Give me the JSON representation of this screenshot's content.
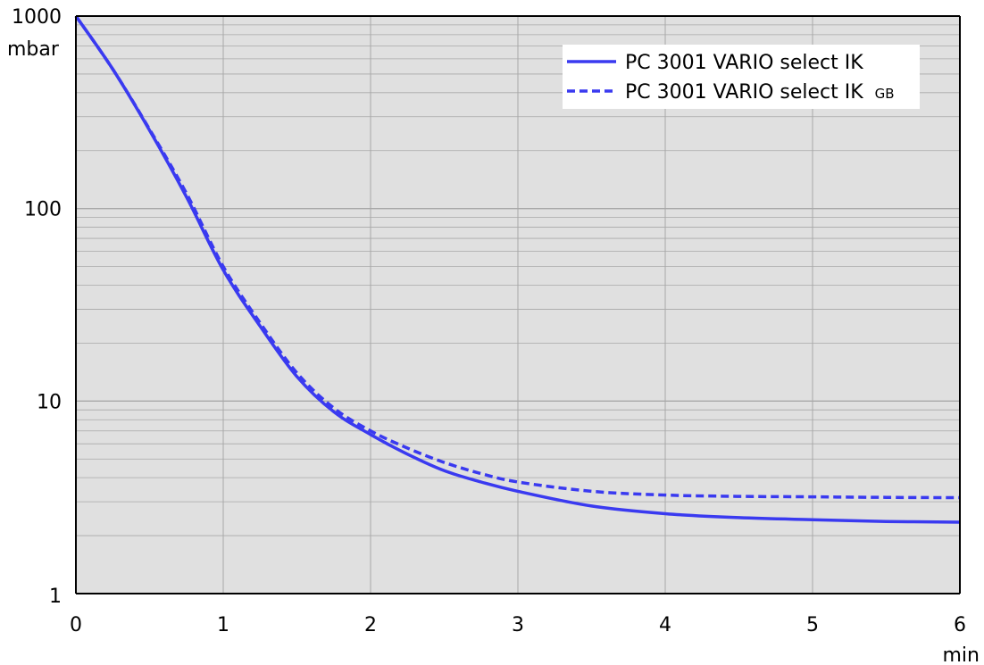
{
  "chart_data": {
    "type": "line",
    "x_axis": {
      "range": [
        0,
        6
      ],
      "ticks": [
        "0",
        "1",
        "2",
        "3",
        "4",
        "5",
        "6"
      ],
      "unit": "min"
    },
    "y_axis": {
      "scale": "log",
      "range": [
        1,
        1000
      ],
      "ticks": [
        "1",
        "10",
        "100",
        "1000"
      ],
      "unit": "mbar"
    },
    "grid": true,
    "legend_position": "top-right",
    "colors": {
      "background": "#e0e0e0",
      "grid": "#a8a8a8",
      "series": "#3a3af0"
    },
    "series": [
      {
        "name": "PC 3001 VARIO select IK",
        "name_suffix": "",
        "style": "solid",
        "x": [
          0,
          0.25,
          0.5,
          0.75,
          1.0,
          1.25,
          1.5,
          1.75,
          2.0,
          2.25,
          2.5,
          2.75,
          3.0,
          3.5,
          4.0,
          4.5,
          5.0,
          5.5,
          6.0
        ],
        "y": [
          1000,
          530,
          255,
          115,
          48,
          24.5,
          13.4,
          8.8,
          6.7,
          5.3,
          4.35,
          3.8,
          3.4,
          2.85,
          2.6,
          2.48,
          2.42,
          2.37,
          2.35
        ]
      },
      {
        "name": "PC 3001 VARIO select IK",
        "name_suffix": "GB",
        "style": "dashed",
        "x": [
          0,
          0.25,
          0.5,
          0.75,
          1.0,
          1.25,
          1.5,
          1.75,
          2.0,
          2.25,
          2.5,
          2.75,
          3.0,
          3.5,
          4.0,
          4.5,
          5.0,
          5.5,
          6.0
        ],
        "y": [
          1000,
          530,
          258,
          120,
          50,
          25.5,
          14.0,
          9.2,
          7.0,
          5.7,
          4.8,
          4.2,
          3.8,
          3.4,
          3.25,
          3.2,
          3.18,
          3.16,
          3.15
        ]
      }
    ]
  }
}
